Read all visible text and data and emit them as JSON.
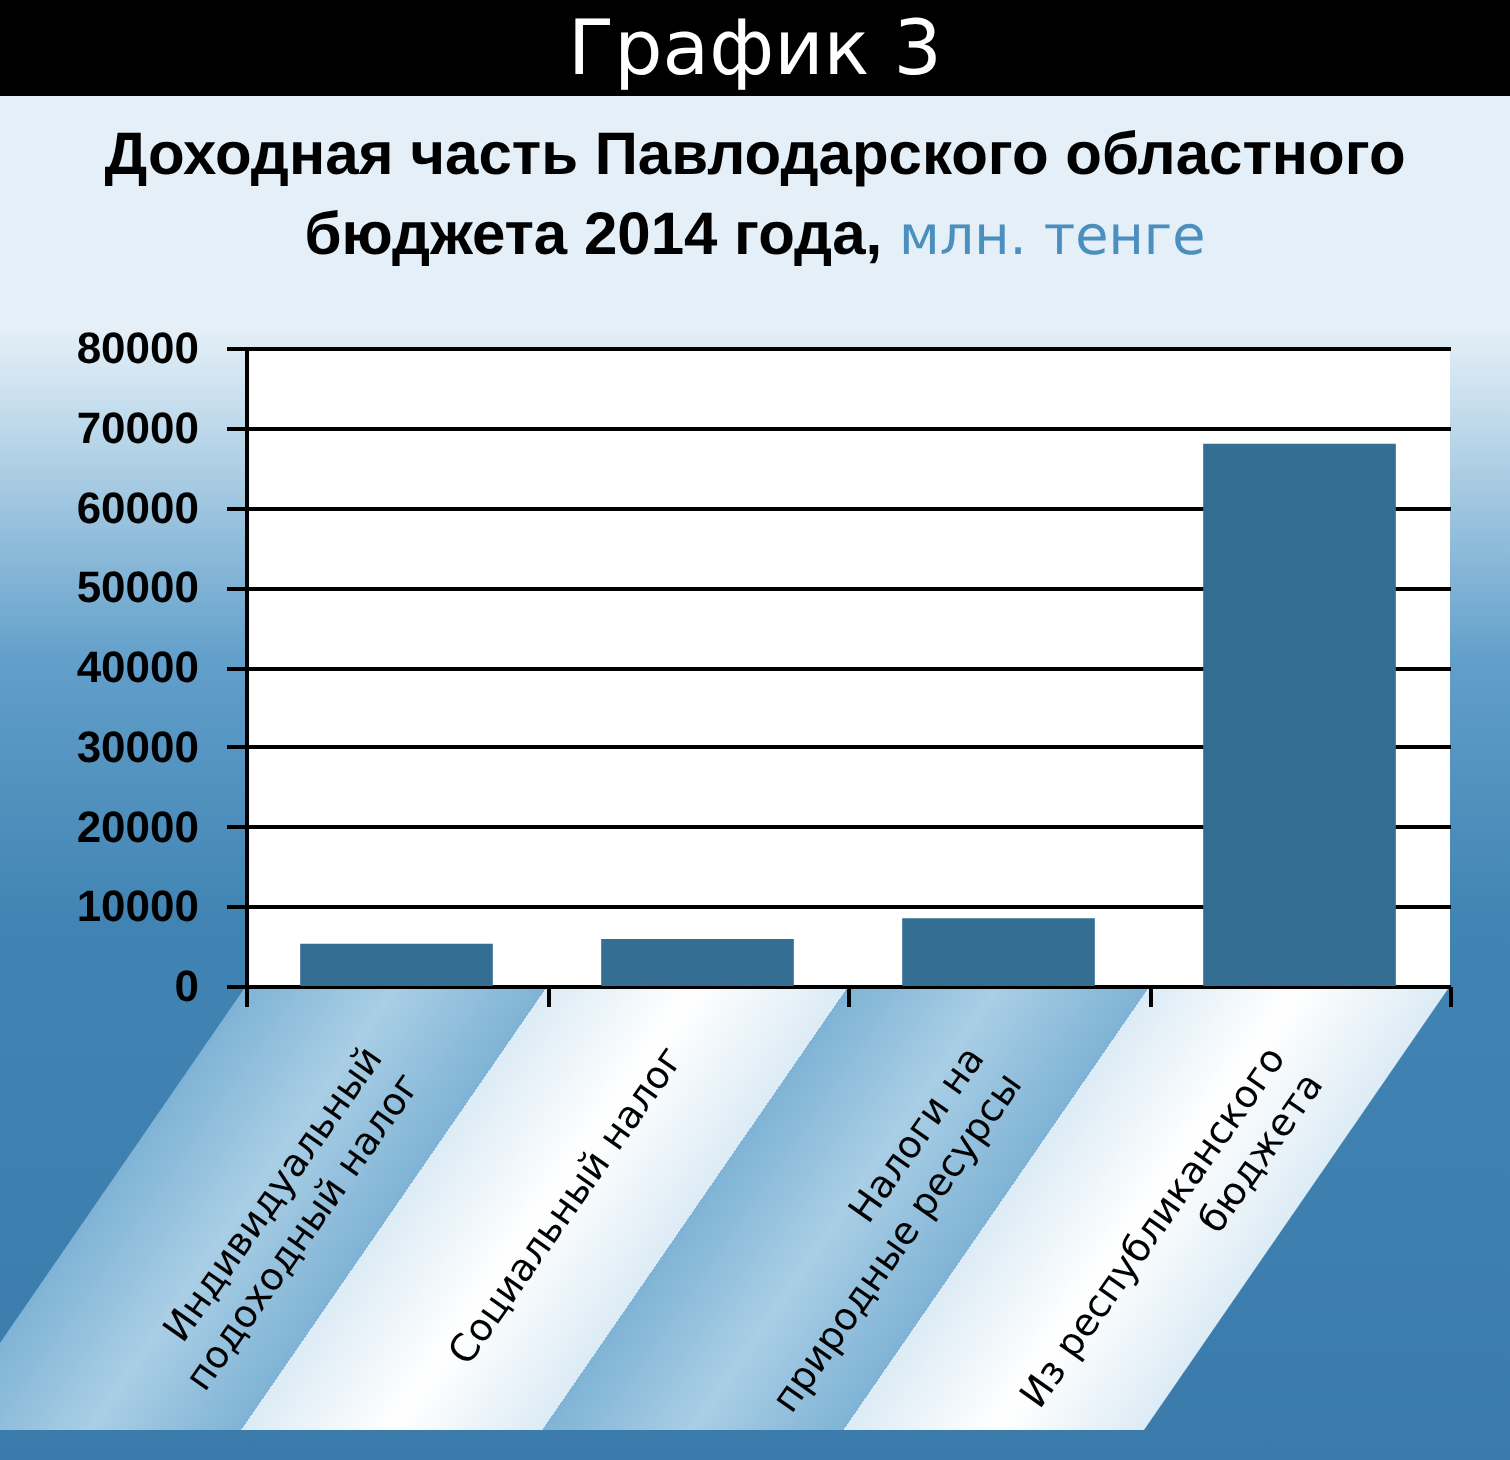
{
  "chart_data": {
    "type": "bar",
    "title": "График 3",
    "subtitle": "Доходная часть Павлодарского областного\nбюджета 2014 года,",
    "ylabel": "млн. тенге",
    "categories": [
      "Индивидуальный\nподоходный налог",
      "Социальный налог",
      "Налоги на\nприродные ресурсы",
      "Из республиканского\nбюджета"
    ],
    "values": [
      5300,
      5900,
      8500,
      68000
    ],
    "color": "#346e93",
    "ylim": [
      0,
      80000
    ],
    "yticks": [
      0,
      10000,
      20000,
      30000,
      40000,
      50000,
      60000,
      70000,
      80000
    ],
    "grid": "y"
  }
}
